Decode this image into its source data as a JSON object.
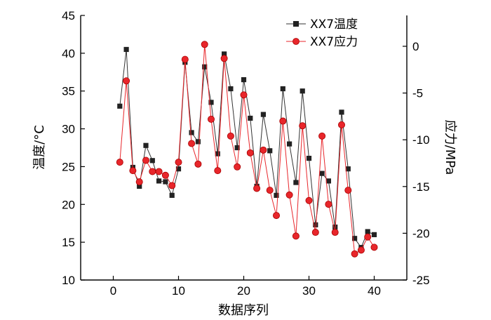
{
  "chart_data": {
    "type": "line",
    "xlabel": "数据序列",
    "ylabel_left": "温度/°C",
    "ylabel_right": "应力/MPa",
    "xlim": [
      -5,
      45
    ],
    "ylim_left": [
      10,
      45
    ],
    "ylim_right": [
      -25,
      3.3
    ],
    "x_ticks": [
      0,
      10,
      20,
      30,
      40
    ],
    "y_left_ticks": [
      10,
      15,
      20,
      25,
      30,
      35,
      40,
      45
    ],
    "y_right_ticks": [
      -25,
      -20,
      -15,
      -10,
      -5,
      0
    ],
    "legend_position": "top-right",
    "grid": false,
    "series": [
      {
        "name": "XX7温度",
        "axis": "left",
        "marker": "square",
        "color": "#222222",
        "line_color": "#333333",
        "x": [
          1,
          2,
          3,
          4,
          5,
          6,
          7,
          8,
          9,
          10,
          11,
          12,
          13,
          14,
          15,
          16,
          17,
          18,
          19,
          20,
          21,
          22,
          23,
          24,
          25,
          26,
          27,
          28,
          29,
          30,
          31,
          32,
          33,
          34,
          35,
          36,
          37,
          38,
          39,
          40
        ],
        "values": [
          33.0,
          40.5,
          24.9,
          22.4,
          27.8,
          25.8,
          23.1,
          23.0,
          21.2,
          24.7,
          38.8,
          29.5,
          28.3,
          38.2,
          33.5,
          26.7,
          39.9,
          35.3,
          27.5,
          36.5,
          31.4,
          22.4,
          31.9,
          27.1,
          21.2,
          35.3,
          28.0,
          22.9,
          35.0,
          26.1,
          17.3,
          24.1,
          23.1,
          17.0,
          32.2,
          24.7,
          15.5,
          14.3,
          16.4,
          16.0
        ]
      },
      {
        "name": "XX7应力",
        "axis": "right",
        "marker": "circle",
        "color": "#e8262b",
        "line_color": "#e8262b",
        "x": [
          1,
          2,
          3,
          4,
          5,
          6,
          7,
          8,
          9,
          10,
          11,
          12,
          13,
          14,
          15,
          16,
          17,
          18,
          19,
          20,
          21,
          22,
          23,
          24,
          25,
          26,
          27,
          28,
          29,
          30,
          31,
          32,
          33,
          34,
          35,
          36,
          37,
          38,
          39,
          40
        ],
        "values": [
          -12.4,
          -3.7,
          -13.3,
          -14.5,
          -12.2,
          -13.4,
          -13.4,
          -13.8,
          -14.9,
          -12.4,
          -1.4,
          -10.4,
          -12.6,
          0.2,
          -7.8,
          -13.3,
          -1.3,
          -9.6,
          -12.9,
          -5.2,
          -11.4,
          -15.2,
          -11.1,
          -15.4,
          -18.1,
          -8.0,
          -15.9,
          -20.3,
          -8.5,
          -16.5,
          -19.9,
          -9.6,
          -16.9,
          -19.9,
          -8.4,
          -15.4,
          -22.2,
          -21.8,
          -20.4,
          -21.5
        ]
      }
    ]
  }
}
